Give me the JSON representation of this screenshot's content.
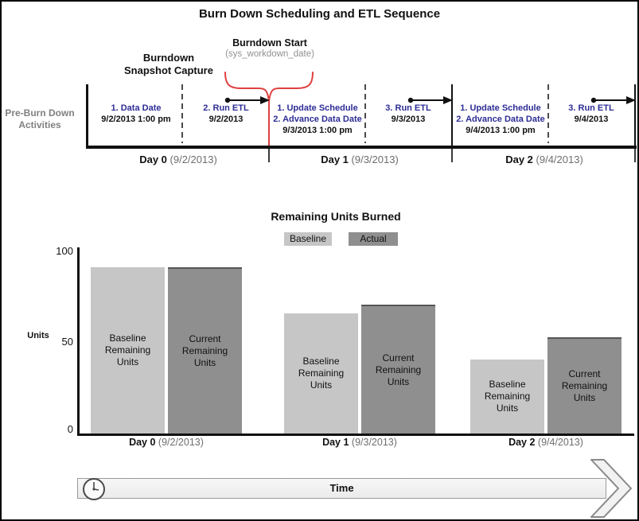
{
  "title": "Burn Down Scheduling and ETL Sequence",
  "timeline": {
    "pre_burn_label": {
      "line1": "Pre-Burn Down",
      "line2": "Activities"
    },
    "snapshot_label": {
      "line1": "Burndown",
      "line2": "Snapshot Capture"
    },
    "burndown_start": {
      "title": "Burndown Start",
      "subtitle": "(sys_workdown_date)"
    },
    "cells": [
      {
        "step1": "1. Data Date",
        "date": "9/2/2013 1:00 pm"
      },
      {
        "step1": "2. Run ETL",
        "date": "9/2/2013"
      },
      {
        "step1": "1. Update Schedule",
        "step2": "2. Advance Data Date",
        "date": "9/3/2013 1:00 pm"
      },
      {
        "step1": "3. Run ETL",
        "date": "9/3/2013"
      },
      {
        "step1": "1. Update Schedule",
        "step2": "2. Advance Data Date",
        "date": "9/4/2013 1:00 pm"
      },
      {
        "step1": "3. Run ETL",
        "date": "9/4/2013"
      }
    ],
    "days": [
      {
        "label": "Day 0",
        "date": "(9/2/2013)"
      },
      {
        "label": "Day 1",
        "date": "(9/3/2013)"
      },
      {
        "label": "Day 2",
        "date": "(9/4/2013)"
      }
    ]
  },
  "chart_data": {
    "type": "bar",
    "title": "Remaining Units Burned",
    "categories": [
      "Day 0 (9/2/2013)",
      "Day 1 (9/3/2013)",
      "Day 2 (9/4/2013)"
    ],
    "series": [
      {
        "name": "Baseline",
        "bar_text": "Baseline Remaining Units",
        "values": [
          90,
          65,
          40
        ],
        "color": "#c6c6c6"
      },
      {
        "name": "Actual",
        "bar_text": "Current Remaining Units",
        "values": [
          90,
          70,
          52
        ],
        "color": "#8f8f8f"
      }
    ],
    "ylabel": "Units",
    "yticks": [
      "0",
      "50",
      "100"
    ],
    "ylim": [
      0,
      100
    ],
    "legend_position": "top-center",
    "grid": false,
    "x_ticks": [
      {
        "label": "Day 0",
        "date": "(9/2/2013)"
      },
      {
        "label": "Day 1",
        "date": "(9/3/2013)"
      },
      {
        "label": "Day 2",
        "date": "(9/4/2013)"
      }
    ]
  },
  "time_arrow": {
    "label": "Time"
  },
  "colors": {
    "step_blue": "#2d2d96",
    "annotation_red": "#e04040",
    "muted_gray": "#808080",
    "baseline_bar": "#c6c6c6",
    "actual_bar": "#8f8f8f"
  }
}
